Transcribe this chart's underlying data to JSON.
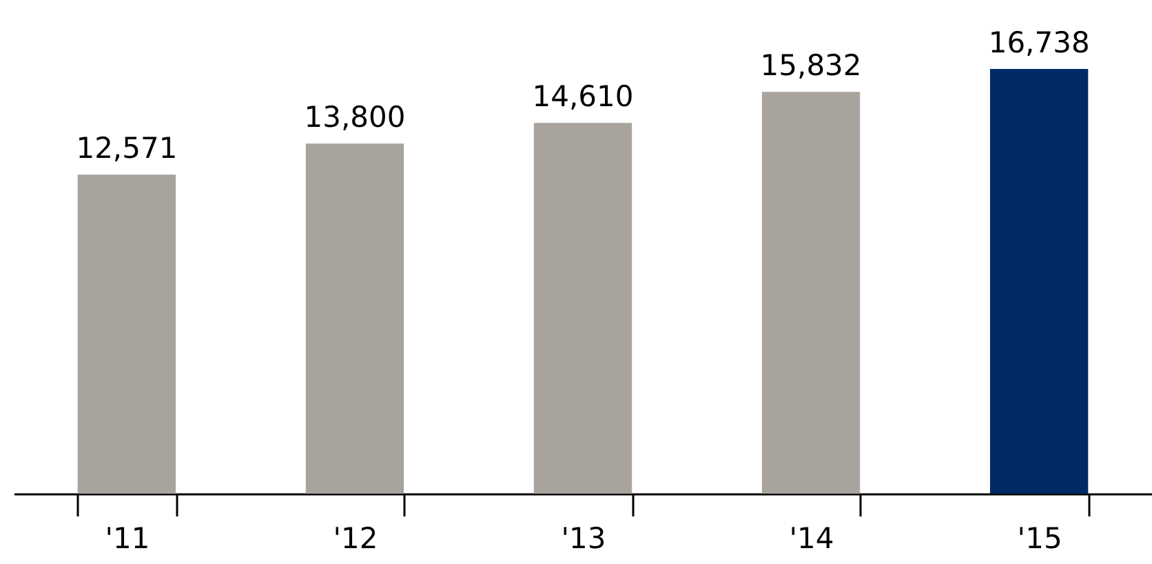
{
  "chart_data": {
    "type": "bar",
    "categories": [
      "'11",
      "'12",
      "'13",
      "'14",
      "'15"
    ],
    "values": [
      12571,
      13800,
      14610,
      15832,
      16738
    ],
    "value_labels": [
      "12,571",
      "13,800",
      "14,610",
      "15,832",
      "16,738"
    ],
    "colors": [
      "#a8a39d",
      "#a8a39d",
      "#a8a39d",
      "#a8a39d",
      "#002a66"
    ]
  }
}
